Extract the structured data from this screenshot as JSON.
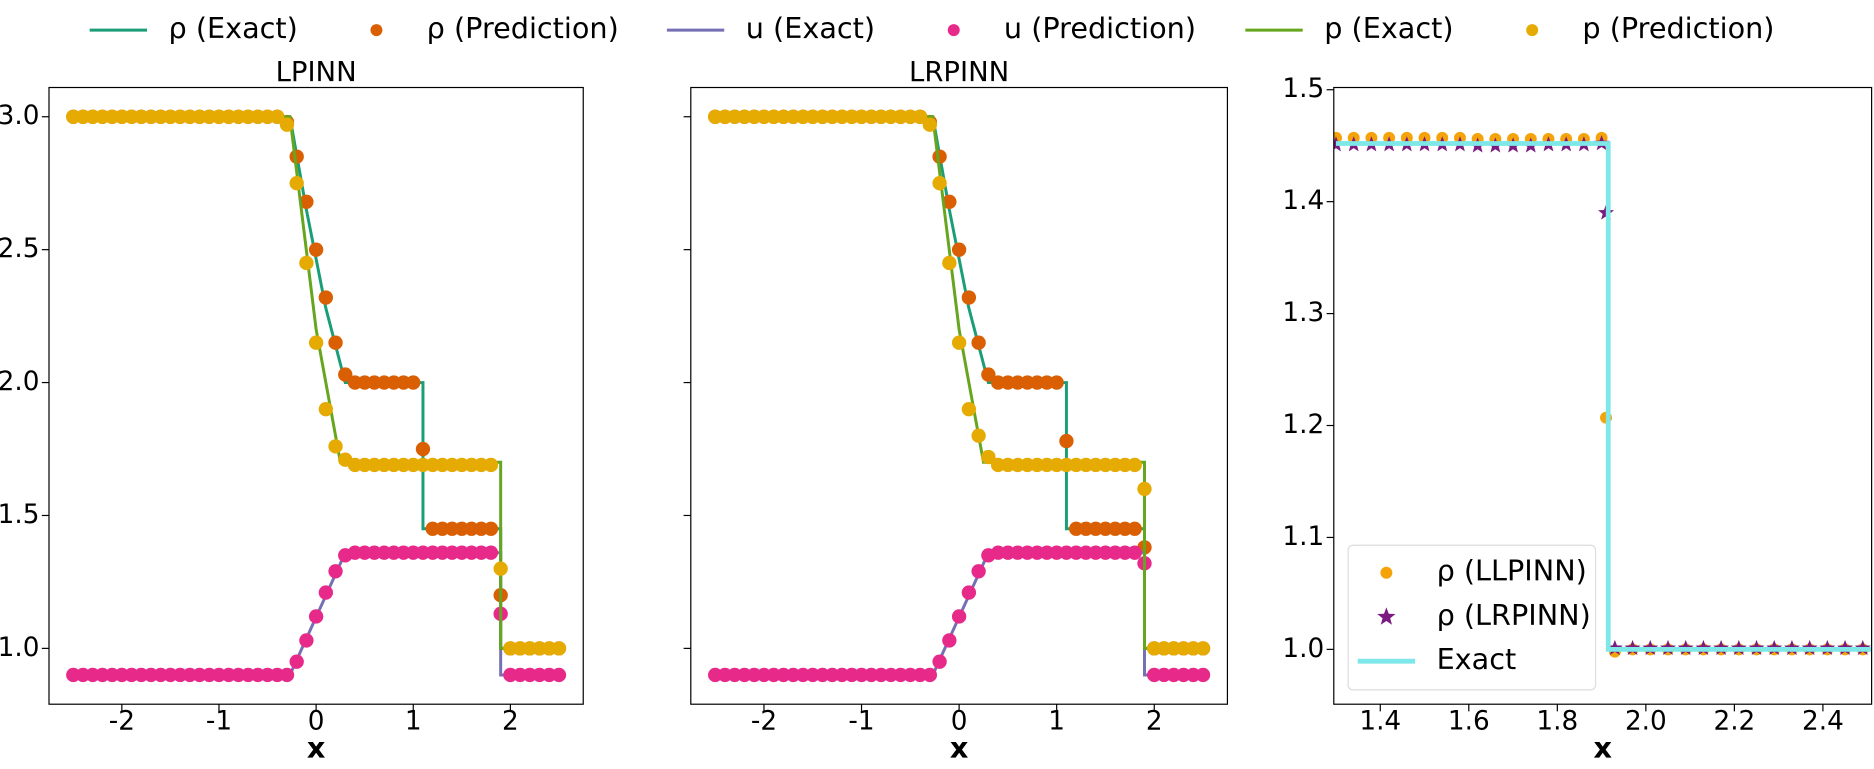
{
  "chart_data": [
    {
      "type": "line",
      "title": "LPINN",
      "xlabel": "x",
      "legend": "top",
      "xlim": [
        -2.75,
        2.75
      ],
      "ylim": [
        0.79,
        3.11
      ],
      "xticks": [
        -2,
        -1,
        0,
        1,
        2
      ],
      "yticks": [
        {
          "value": 1,
          "label": "1.0"
        },
        1.5,
        {
          "value": 2,
          "label": "2.0"
        },
        2.5,
        {
          "value": 3,
          "label": "3.0"
        }
      ],
      "series": [
        {
          "name": "ρ (Exact)",
          "color": "#1b9e77",
          "style": "line",
          "x": [
            -2.5,
            -0.27,
            -0.1,
            0.1,
            0.3,
            1.1,
            1.1,
            1.9,
            1.9,
            2.5
          ],
          "values": [
            3,
            3,
            2.65,
            2.28,
            2,
            2,
            1.45,
            1.45,
            1,
            1
          ]
        },
        {
          "name": "ρ (Prediction)",
          "color": "#d95f02",
          "style": "circle",
          "x": [
            -2.5,
            -2.4,
            -2.3,
            -2.2,
            -2.1,
            -2,
            -1.9,
            -1.8,
            -1.7,
            -1.6,
            -1.5,
            -1.4,
            -1.3,
            -1.2,
            -1.1,
            -1,
            -0.9,
            -0.8,
            -0.7,
            -0.6,
            -0.5,
            -0.4,
            -0.3,
            -0.2,
            -0.1,
            0,
            0.1,
            0.2,
            0.3,
            0.4,
            0.5,
            0.6,
            0.7,
            0.8,
            0.9,
            1,
            1.1,
            1.2,
            1.3,
            1.4,
            1.5,
            1.6,
            1.7,
            1.8,
            1.9,
            2,
            2.1,
            2.2,
            2.3,
            2.4,
            2.5
          ],
          "values": [
            3,
            3,
            3,
            3,
            3,
            3,
            3,
            3,
            3,
            3,
            3,
            3,
            3,
            3,
            3,
            3,
            3,
            3,
            3,
            3,
            3,
            3,
            2.98,
            2.85,
            2.68,
            2.5,
            2.32,
            2.15,
            2.03,
            2,
            2,
            2,
            2,
            2,
            2,
            2,
            1.75,
            1.45,
            1.45,
            1.45,
            1.45,
            1.45,
            1.45,
            1.45,
            1.2,
            1,
            1,
            1,
            1,
            1,
            1
          ]
        },
        {
          "name": "u (Exact)",
          "color": "#7570b3",
          "style": "line",
          "x": [
            -2.5,
            -0.27,
            0.3,
            1.9,
            1.9,
            2.5
          ],
          "values": [
            0.9,
            0.9,
            1.36,
            1.36,
            0.9,
            0.9
          ]
        },
        {
          "name": "u (Prediction)",
          "color": "#e7298a",
          "style": "circle",
          "x": [
            -2.5,
            -2.4,
            -2.3,
            -2.2,
            -2.1,
            -2,
            -1.9,
            -1.8,
            -1.7,
            -1.6,
            -1.5,
            -1.4,
            -1.3,
            -1.2,
            -1.1,
            -1,
            -0.9,
            -0.8,
            -0.7,
            -0.6,
            -0.5,
            -0.4,
            -0.3,
            -0.2,
            -0.1,
            0,
            0.1,
            0.2,
            0.3,
            0.4,
            0.5,
            0.6,
            0.7,
            0.8,
            0.9,
            1,
            1.1,
            1.2,
            1.3,
            1.4,
            1.5,
            1.6,
            1.7,
            1.8,
            1.9,
            2,
            2.1,
            2.2,
            2.3,
            2.4,
            2.5
          ],
          "values": [
            0.9,
            0.9,
            0.9,
            0.9,
            0.9,
            0.9,
            0.9,
            0.9,
            0.9,
            0.9,
            0.9,
            0.9,
            0.9,
            0.9,
            0.9,
            0.9,
            0.9,
            0.9,
            0.9,
            0.9,
            0.9,
            0.9,
            0.9,
            0.95,
            1.03,
            1.12,
            1.21,
            1.29,
            1.35,
            1.36,
            1.36,
            1.36,
            1.36,
            1.36,
            1.36,
            1.36,
            1.36,
            1.36,
            1.36,
            1.36,
            1.36,
            1.36,
            1.36,
            1.36,
            1.13,
            0.9,
            0.9,
            0.9,
            0.9,
            0.9,
            0.9
          ]
        },
        {
          "name": "p (Exact)",
          "color": "#66a61e",
          "style": "line",
          "x": [
            -2.5,
            -0.27,
            0,
            0.25,
            1.9,
            1.9,
            2.5
          ],
          "values": [
            3,
            3,
            2.2,
            1.7,
            1.7,
            1,
            1
          ]
        },
        {
          "name": "p (Prediction)",
          "color": "#e6ab02",
          "style": "circle",
          "x": [
            -2.5,
            -2.4,
            -2.3,
            -2.2,
            -2.1,
            -2,
            -1.9,
            -1.8,
            -1.7,
            -1.6,
            -1.5,
            -1.4,
            -1.3,
            -1.2,
            -1.1,
            -1,
            -0.9,
            -0.8,
            -0.7,
            -0.6,
            -0.5,
            -0.4,
            -0.3,
            -0.2,
            -0.1,
            0,
            0.1,
            0.2,
            0.3,
            0.4,
            0.5,
            0.6,
            0.7,
            0.8,
            0.9,
            1,
            1.1,
            1.2,
            1.3,
            1.4,
            1.5,
            1.6,
            1.7,
            1.8,
            1.9,
            2,
            2.1,
            2.2,
            2.3,
            2.4,
            2.5
          ],
          "values": [
            3,
            3,
            3,
            3,
            3,
            3,
            3,
            3,
            3,
            3,
            3,
            3,
            3,
            3,
            3,
            3,
            3,
            3,
            3,
            3,
            3,
            3,
            2.97,
            2.75,
            2.45,
            2.15,
            1.9,
            1.76,
            1.71,
            1.69,
            1.69,
            1.69,
            1.69,
            1.69,
            1.69,
            1.69,
            1.69,
            1.69,
            1.69,
            1.69,
            1.69,
            1.69,
            1.69,
            1.69,
            1.3,
            1,
            1,
            1,
            1,
            1,
            1
          ]
        }
      ]
    },
    {
      "type": "line",
      "title": "LRPINN",
      "xlabel": "x",
      "show_ytick_labels": false,
      "xlim": [
        -2.75,
        2.75
      ],
      "ylim": [
        0.79,
        3.11
      ],
      "xticks": [
        -2,
        -1,
        0,
        1,
        2
      ],
      "yticks": [
        1,
        1.5,
        2,
        2.5,
        3
      ],
      "series": [
        {
          "color": "#1b9e77",
          "style": "line",
          "x": [
            -2.5,
            -0.27,
            -0.1,
            0.1,
            0.3,
            1.1,
            1.1,
            1.9,
            1.9,
            2.5
          ],
          "values": [
            3,
            3,
            2.65,
            2.28,
            2,
            2,
            1.45,
            1.45,
            1,
            1
          ]
        },
        {
          "color": "#d95f02",
          "style": "circle",
          "x": [
            -2.5,
            -2.4,
            -2.3,
            -2.2,
            -2.1,
            -2,
            -1.9,
            -1.8,
            -1.7,
            -1.6,
            -1.5,
            -1.4,
            -1.3,
            -1.2,
            -1.1,
            -1,
            -0.9,
            -0.8,
            -0.7,
            -0.6,
            -0.5,
            -0.4,
            -0.3,
            -0.2,
            -0.1,
            0,
            0.1,
            0.2,
            0.3,
            0.4,
            0.5,
            0.6,
            0.7,
            0.8,
            0.9,
            1,
            1.1,
            1.2,
            1.3,
            1.4,
            1.5,
            1.6,
            1.7,
            1.8,
            1.9,
            2,
            2.1,
            2.2,
            2.3,
            2.4,
            2.5
          ],
          "values": [
            3,
            3,
            3,
            3,
            3,
            3,
            3,
            3,
            3,
            3,
            3,
            3,
            3,
            3,
            3,
            3,
            3,
            3,
            3,
            3,
            3,
            3,
            2.98,
            2.85,
            2.68,
            2.5,
            2.32,
            2.15,
            2.03,
            2,
            2,
            2,
            2,
            2,
            2,
            2,
            1.78,
            1.45,
            1.45,
            1.45,
            1.45,
            1.45,
            1.45,
            1.45,
            1.38,
            1,
            1,
            1,
            1,
            1,
            1
          ]
        },
        {
          "color": "#7570b3",
          "style": "line",
          "x": [
            -2.5,
            -0.27,
            0.3,
            1.9,
            1.9,
            2.5
          ],
          "values": [
            0.9,
            0.9,
            1.36,
            1.36,
            0.9,
            0.9
          ]
        },
        {
          "color": "#e7298a",
          "style": "circle",
          "x": [
            -2.5,
            -2.4,
            -2.3,
            -2.2,
            -2.1,
            -2,
            -1.9,
            -1.8,
            -1.7,
            -1.6,
            -1.5,
            -1.4,
            -1.3,
            -1.2,
            -1.1,
            -1,
            -0.9,
            -0.8,
            -0.7,
            -0.6,
            -0.5,
            -0.4,
            -0.3,
            -0.2,
            -0.1,
            0,
            0.1,
            0.2,
            0.3,
            0.4,
            0.5,
            0.6,
            0.7,
            0.8,
            0.9,
            1,
            1.1,
            1.2,
            1.3,
            1.4,
            1.5,
            1.6,
            1.7,
            1.8,
            1.9,
            2,
            2.1,
            2.2,
            2.3,
            2.4,
            2.5
          ],
          "values": [
            0.9,
            0.9,
            0.9,
            0.9,
            0.9,
            0.9,
            0.9,
            0.9,
            0.9,
            0.9,
            0.9,
            0.9,
            0.9,
            0.9,
            0.9,
            0.9,
            0.9,
            0.9,
            0.9,
            0.9,
            0.9,
            0.9,
            0.9,
            0.95,
            1.03,
            1.12,
            1.21,
            1.29,
            1.35,
            1.36,
            1.36,
            1.36,
            1.36,
            1.36,
            1.36,
            1.36,
            1.36,
            1.36,
            1.36,
            1.36,
            1.36,
            1.36,
            1.36,
            1.36,
            1.32,
            0.9,
            0.9,
            0.9,
            0.9,
            0.9,
            0.9
          ]
        },
        {
          "color": "#66a61e",
          "style": "line",
          "x": [
            -2.5,
            -0.27,
            0,
            0.25,
            1.9,
            1.9,
            2.5
          ],
          "values": [
            3,
            3,
            2.2,
            1.7,
            1.7,
            1,
            1
          ]
        },
        {
          "color": "#e6ab02",
          "style": "circle",
          "x": [
            -2.5,
            -2.4,
            -2.3,
            -2.2,
            -2.1,
            -2,
            -1.9,
            -1.8,
            -1.7,
            -1.6,
            -1.5,
            -1.4,
            -1.3,
            -1.2,
            -1.1,
            -1,
            -0.9,
            -0.8,
            -0.7,
            -0.6,
            -0.5,
            -0.4,
            -0.3,
            -0.2,
            -0.1,
            0,
            0.1,
            0.2,
            0.3,
            0.4,
            0.5,
            0.6,
            0.7,
            0.8,
            0.9,
            1,
            1.1,
            1.2,
            1.3,
            1.4,
            1.5,
            1.6,
            1.7,
            1.8,
            1.9,
            2,
            2.1,
            2.2,
            2.3,
            2.4,
            2.5
          ],
          "values": [
            3,
            3,
            3,
            3,
            3,
            3,
            3,
            3,
            3,
            3,
            3,
            3,
            3,
            3,
            3,
            3,
            3,
            3,
            3,
            3,
            3,
            3,
            2.97,
            2.75,
            2.45,
            2.15,
            1.9,
            1.8,
            1.72,
            1.69,
            1.69,
            1.69,
            1.69,
            1.69,
            1.69,
            1.69,
            1.69,
            1.69,
            1.69,
            1.69,
            1.69,
            1.69,
            1.69,
            1.69,
            1.6,
            1,
            1,
            1,
            1,
            1,
            1
          ]
        }
      ]
    },
    {
      "type": "scatter",
      "xlabel": "x",
      "legend": "lower left",
      "xlim": [
        1.295,
        2.51
      ],
      "ylim": [
        0.951,
        1.502
      ],
      "xticks": [
        1.4,
        1.6,
        1.8,
        {
          "value": 2,
          "label": "2.0"
        },
        2.2,
        2.4
      ],
      "yticks": [
        {
          "value": 1,
          "label": "1.0"
        },
        1.1,
        1.2,
        1.3,
        1.4,
        1.5
      ],
      "series": [
        {
          "name": "ρ (LLPINN)",
          "color": "#f5a30a",
          "style": "circle",
          "x": [
            1.3,
            1.34,
            1.38,
            1.42,
            1.46,
            1.5,
            1.54,
            1.58,
            1.62,
            1.66,
            1.7,
            1.74,
            1.78,
            1.82,
            1.86,
            1.9,
            1.91,
            1.93,
            1.97,
            2.01,
            2.05,
            2.09,
            2.13,
            2.17,
            2.21,
            2.25,
            2.29,
            2.33,
            2.37,
            2.41,
            2.45,
            2.49
          ],
          "values": [
            1.457,
            1.457,
            1.457,
            1.457,
            1.457,
            1.457,
            1.457,
            1.457,
            1.456,
            1.456,
            1.456,
            1.456,
            1.456,
            1.456,
            1.456,
            1.457,
            1.207,
            0.998,
            1,
            1,
            1,
            1,
            1,
            1,
            1,
            1,
            1,
            1,
            1,
            1,
            1,
            1
          ]
        },
        {
          "name": "ρ (LRPINN)",
          "color": "#7b1a80",
          "style": "star",
          "x": [
            1.3,
            1.34,
            1.38,
            1.42,
            1.46,
            1.5,
            1.54,
            1.58,
            1.62,
            1.66,
            1.7,
            1.74,
            1.78,
            1.82,
            1.86,
            1.9,
            1.91,
            1.93,
            1.97,
            2.01,
            2.05,
            2.09,
            2.13,
            2.17,
            2.21,
            2.25,
            2.29,
            2.33,
            2.37,
            2.41,
            2.45,
            2.49
          ],
          "values": [
            1.451,
            1.451,
            1.451,
            1.451,
            1.451,
            1.451,
            1.451,
            1.451,
            1.45,
            1.45,
            1.45,
            1.45,
            1.451,
            1.451,
            1.451,
            1.452,
            1.39,
            1.001,
            1.001,
            1.001,
            1.001,
            1.001,
            1.001,
            1.001,
            1.001,
            1.001,
            1.001,
            1.001,
            1.001,
            1.001,
            1.001,
            1.001
          ]
        },
        {
          "name": "Exact",
          "color": "#7ee8e8",
          "style": "line",
          "x": [
            1.3,
            1.915,
            1.915,
            2.51
          ],
          "values": [
            1.452,
            1.452,
            1,
            1
          ]
        }
      ]
    }
  ]
}
